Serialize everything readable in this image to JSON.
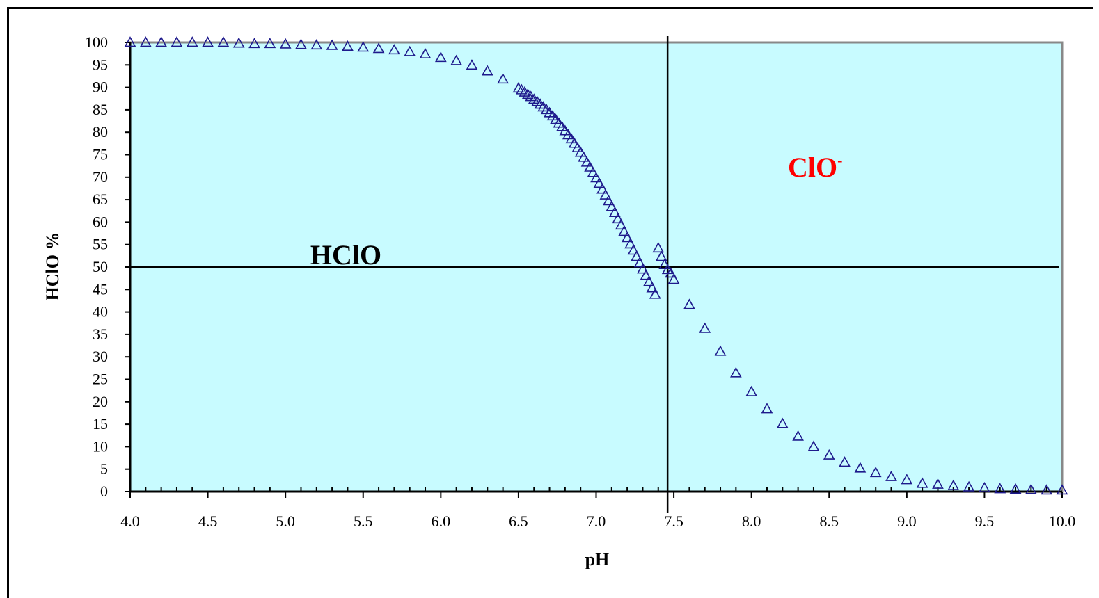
{
  "colors": {
    "plot_background": "#c8fbff",
    "plot_border": "#888888",
    "marker": "#1e1a8c",
    "guide_line": "#000000",
    "hclo_label": "#000000",
    "clo_label": "#ff0000"
  },
  "annotations": {
    "hclo": "HClO",
    "clo_base": "ClO",
    "clo_sup": "-"
  },
  "chart_data": {
    "type": "scatter",
    "title": "",
    "xlabel": "pH",
    "ylabel": "HClO %",
    "xlim": [
      4.0,
      10.0
    ],
    "ylim": [
      0,
      100
    ],
    "xticks": [
      "4.0",
      "4.5",
      "5.0",
      "5.5",
      "6.0",
      "6.5",
      "7.0",
      "7.5",
      "8.0",
      "8.5",
      "9.0",
      "9.5",
      "10.0"
    ],
    "yticks": [
      "0",
      "5",
      "10",
      "15",
      "20",
      "25",
      "30",
      "35",
      "40",
      "45",
      "50",
      "55",
      "60",
      "65",
      "70",
      "75",
      "80",
      "85",
      "90",
      "95",
      "100"
    ],
    "marker": "open-triangle",
    "grid": false,
    "reference_lines": {
      "vertical_x": 7.46,
      "horizontal_y": 50
    },
    "series": [
      {
        "x": [
          4.0,
          4.1,
          4.2,
          4.3,
          4.4,
          4.5,
          4.6,
          4.7,
          4.8,
          4.9,
          5.0,
          5.1,
          5.2,
          5.3,
          5.4,
          5.5,
          5.6,
          5.7,
          5.8,
          5.9,
          6.0,
          6.1,
          6.2,
          6.3,
          6.4,
          6.5,
          6.52,
          6.54,
          6.56,
          6.58,
          6.6,
          6.62,
          6.64,
          6.66,
          6.68,
          6.7,
          6.72,
          6.74,
          6.76,
          6.78,
          6.8,
          6.82,
          6.84,
          6.86,
          6.88,
          6.9,
          6.92,
          6.94,
          6.96,
          6.98,
          7.0,
          7.02,
          7.04,
          7.06,
          7.08,
          7.1,
          7.12,
          7.14,
          7.16,
          7.18,
          7.2,
          7.22,
          7.24,
          7.26,
          7.28,
          7.3,
          7.32,
          7.34,
          7.36,
          7.38,
          7.4,
          7.42,
          7.44,
          7.46,
          7.48,
          7.5,
          7.6,
          7.7,
          7.8,
          7.9,
          8.0,
          8.1,
          8.2,
          8.3,
          8.4,
          8.5,
          8.6,
          8.7,
          8.8,
          8.9,
          9.0,
          9.1,
          9.2,
          9.3,
          9.4,
          9.5,
          9.6,
          9.7,
          9.8,
          9.9,
          10.0
        ],
        "y": [
          100,
          100,
          100,
          100,
          100,
          100,
          100,
          99.8,
          99.7,
          99.7,
          99.6,
          99.5,
          99.4,
          99.3,
          99.1,
          98.9,
          98.6,
          98.3,
          97.9,
          97.4,
          96.6,
          95.9,
          94.9,
          93.6,
          91.8,
          89.8,
          89.4,
          88.9,
          88.4,
          87.9,
          87.3,
          86.8,
          86.2,
          85.6,
          85.0,
          84.3,
          83.6,
          82.8,
          82.0,
          81.2,
          80.3,
          79.4,
          78.5,
          77.5,
          76.5,
          75.5,
          74.4,
          73.3,
          72.2,
          71.0,
          69.8,
          68.6,
          67.3,
          66.0,
          64.7,
          63.4,
          62.1,
          60.7,
          59.3,
          57.9,
          56.5,
          55.1,
          53.7,
          52.3,
          50.9,
          49.5,
          48.1,
          46.7,
          45.3,
          43.9,
          54.2,
          52.3,
          50.5,
          49.4,
          48.6,
          47.2,
          41.6,
          36.3,
          31.2,
          26.4,
          22.2,
          18.4,
          15.1,
          12.3,
          10.0,
          8.1,
          6.5,
          5.2,
          4.2,
          3.3,
          2.6,
          1.8,
          1.6,
          1.3,
          1.0,
          0.8,
          0.6,
          0.5,
          0.4,
          0.3,
          0.3
        ]
      }
    ]
  }
}
